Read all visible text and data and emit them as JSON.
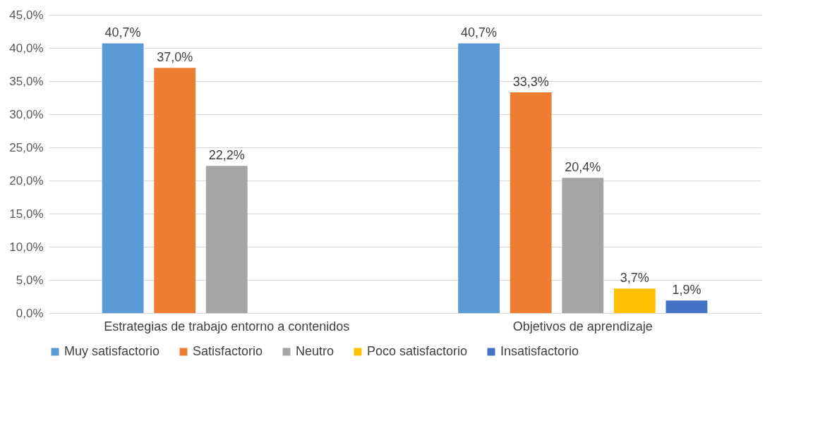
{
  "chart_data": {
    "type": "bar",
    "categories": [
      "Estrategias de trabajo entorno a contenidos",
      "Objetivos de aprendizaje"
    ],
    "series": [
      {
        "name": "Muy satisfactorio",
        "color": "#5b9bd5",
        "values": [
          40.7,
          40.7
        ],
        "value_labels": [
          "40,7%",
          "40,7%"
        ]
      },
      {
        "name": "Satisfactorio",
        "color": "#ed7d31",
        "values": [
          37.0,
          33.3
        ],
        "value_labels": [
          "37,0%",
          "33,3%"
        ]
      },
      {
        "name": "Neutro",
        "color": "#a5a5a5",
        "values": [
          22.2,
          20.4
        ],
        "value_labels": [
          "22,2%",
          "20,4%"
        ]
      },
      {
        "name": "Poco satisfactorio",
        "color": "#ffc000",
        "values": [
          null,
          3.7
        ],
        "value_labels": [
          null,
          "3,7%"
        ]
      },
      {
        "name": "Insatisfactorio",
        "color": "#4472c4",
        "values": [
          null,
          1.9
        ],
        "value_labels": [
          null,
          "1,9%"
        ]
      }
    ],
    "ylim": [
      0,
      45
    ],
    "yticks": [
      {
        "value": 0,
        "label": "0,0%"
      },
      {
        "value": 5,
        "label": "5,0%"
      },
      {
        "value": 10,
        "label": "10,0%"
      },
      {
        "value": 15,
        "label": "15,0%"
      },
      {
        "value": 20,
        "label": "20,0%"
      },
      {
        "value": 25,
        "label": "25,0%"
      },
      {
        "value": 30,
        "label": "30,0%"
      },
      {
        "value": 35,
        "label": "35,0%"
      },
      {
        "value": 40,
        "label": "40,0%"
      },
      {
        "value": 45,
        "label": "45,0%"
      }
    ],
    "grid": "y",
    "legend": "bottom"
  }
}
